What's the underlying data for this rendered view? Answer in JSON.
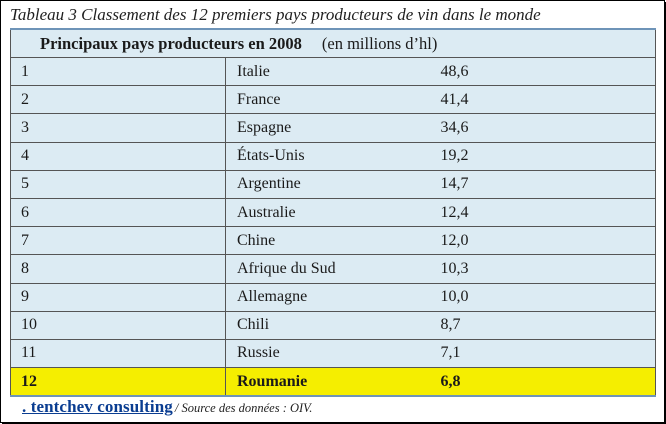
{
  "caption": "Tableau 3 Classement des 12 premiers pays producteurs de vin dans le monde",
  "header": {
    "title": "Principaux pays producteurs en 2008",
    "unit": "(en millions d’hl)"
  },
  "rows": [
    {
      "rank": "1",
      "country": "Italie",
      "value": "48,6"
    },
    {
      "rank": "2",
      "country": "France",
      "value": "41,4"
    },
    {
      "rank": "3",
      "country": "Espagne",
      "value": "34,6"
    },
    {
      "rank": "4",
      "country": "États-Unis",
      "value": "19,2"
    },
    {
      "rank": "5",
      "country": "Argentine",
      "value": "14,7"
    },
    {
      "rank": "6",
      "country": "Australie",
      "value": "12,4"
    },
    {
      "rank": "7",
      "country": "Chine",
      "value": "12,0"
    },
    {
      "rank": "8",
      "country": "Afrique du Sud",
      "value": "10,3"
    },
    {
      "rank": "9",
      "country": "Allemagne",
      "value": "10,0"
    },
    {
      "rank": "10",
      "country": "Chili",
      "value": "8,7"
    },
    {
      "rank": "11",
      "country": "Russie",
      "value": "7,1"
    },
    {
      "rank": "12",
      "country": "Roumanie",
      "value": "6,8"
    }
  ],
  "highlight_color": "#f5ee00",
  "row_color": "#dcebf3",
  "footer": {
    "brand": ". tentchev consulting",
    "source": "/ Source des données : OIV."
  }
}
